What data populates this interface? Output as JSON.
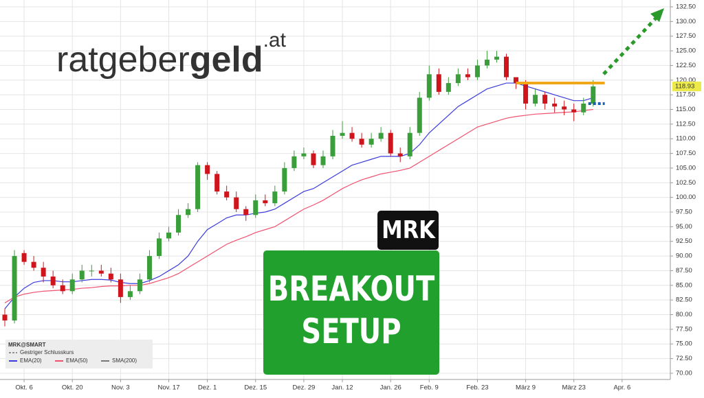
{
  "chart_data": {
    "type": "candlestick",
    "logo": {
      "main": "ratgeber",
      "bold": "geld",
      "suffix": ".at"
    },
    "ticker_badge": "MRK",
    "setup_label": [
      "BREAKOUT",
      "SETUP"
    ],
    "legend_title": "MRK@SMART",
    "legend_note": "Gestriger Schlusskurs",
    "legend_sma": "SMA(200)",
    "up_color": "#3a9e3a",
    "down_color": "#d0141c",
    "x": [
      0,
      1,
      2,
      3,
      4,
      5,
      6,
      7,
      8,
      9,
      10,
      11,
      12,
      13,
      14,
      15,
      16,
      17,
      18,
      19,
      20,
      21,
      22,
      23,
      24,
      25,
      26,
      27,
      28,
      29,
      30,
      31,
      32,
      33,
      34,
      35,
      36,
      37,
      38,
      39,
      40,
      41,
      42,
      43,
      44,
      45,
      46,
      47,
      48,
      49,
      50,
      51,
      52,
      53,
      54,
      55,
      56,
      57,
      58,
      59,
      60,
      61
    ],
    "open": [
      80,
      79,
      90.5,
      89,
      88,
      86.5,
      85,
      84,
      86,
      87.5,
      87.5,
      87,
      86,
      83,
      84,
      86,
      90,
      93,
      94,
      97,
      98,
      105.5,
      104,
      101,
      100,
      98,
      97,
      99.5,
      99,
      101,
      105,
      107,
      107.5,
      105.5,
      107,
      110.5,
      111,
      110,
      109,
      110,
      111,
      107.5,
      107,
      111,
      117,
      121,
      118,
      119.5,
      121,
      120.5,
      122.5,
      123.5,
      124,
      120.5,
      119.5,
      116,
      117.5,
      116,
      115.5,
      115,
      114.5,
      116
    ],
    "high": [
      81,
      91,
      91,
      90,
      89,
      87.5,
      86,
      87,
      88.5,
      88.5,
      88.5,
      88,
      87,
      85,
      87,
      91,
      94,
      95,
      98,
      99,
      106,
      106,
      104.5,
      102,
      101,
      98.5,
      100.5,
      100.5,
      102,
      106,
      108,
      108.5,
      108,
      108,
      111.5,
      113,
      112,
      111,
      111,
      112,
      111.5,
      108.5,
      112,
      118,
      122.5,
      122,
      120.5,
      122,
      122,
      123.5,
      125,
      125,
      124.5,
      120.5,
      120,
      118.5,
      118,
      117,
      116.5,
      116,
      117,
      120
    ],
    "low": [
      78,
      78.5,
      88.5,
      87.5,
      85.5,
      84.5,
      83.5,
      83.5,
      85.5,
      86.5,
      86.5,
      85.5,
      82,
      82.5,
      83.5,
      85.5,
      89.5,
      92.5,
      93.5,
      96.5,
      97.5,
      103,
      100.5,
      99.5,
      97.5,
      96,
      96.5,
      98.5,
      98.5,
      100.5,
      104.5,
      106.5,
      105,
      105,
      106.5,
      110,
      109.5,
      108.5,
      108.5,
      109.5,
      107,
      106,
      106.5,
      110.5,
      116.5,
      117.5,
      117.5,
      119,
      120,
      120,
      122,
      123,
      120,
      118.5,
      115,
      115.5,
      115,
      114.5,
      114,
      113,
      114,
      115.5
    ],
    "close": [
      79,
      90,
      89,
      88,
      86.5,
      85,
      84,
      86,
      87.5,
      87.5,
      87,
      86,
      83,
      84,
      86,
      90,
      93,
      94,
      97,
      98,
      105.5,
      104,
      101,
      100,
      98,
      97,
      99.5,
      99,
      101,
      105,
      107,
      107.5,
      105.5,
      107,
      110.5,
      111,
      110,
      109,
      110,
      111,
      107.5,
      107,
      111,
      117,
      121,
      118,
      119.5,
      121,
      120.5,
      122.5,
      123.5,
      124,
      120.5,
      119.5,
      116,
      117.5,
      116,
      115.5,
      115,
      114.5,
      116,
      118.93
    ],
    "series": [
      {
        "name": "EMA(20)",
        "color": "#3a3adc",
        "values": [
          81,
          83,
          84.5,
          85.5,
          85.8,
          85.8,
          85.6,
          85.6,
          85.8,
          86,
          86,
          85.9,
          85.5,
          85.3,
          85.3,
          85.8,
          86.5,
          87.5,
          88.5,
          90,
          92.5,
          94.5,
          95.5,
          96.5,
          97,
          97,
          97.3,
          97.5,
          98,
          99,
          100,
          101,
          101.5,
          102.5,
          103.5,
          104.5,
          105.5,
          106,
          106.5,
          107,
          107,
          107,
          107.5,
          109,
          111,
          112.5,
          114,
          115.5,
          116.5,
          117.5,
          118.5,
          119,
          119.5,
          119.5,
          119,
          118.5,
          118,
          117.5,
          117,
          116.5,
          116.5,
          117
        ]
      },
      {
        "name": "EMA(50)",
        "color": "#f0506e",
        "values": [
          82,
          83,
          83.5,
          83.8,
          84,
          84.1,
          84.2,
          84.3,
          84.5,
          84.6,
          84.8,
          84.9,
          84.9,
          85,
          85,
          85.3,
          85.8,
          86.3,
          87,
          88,
          89,
          90,
          91,
          92,
          92.7,
          93.3,
          94,
          94.5,
          95,
          96,
          97,
          98,
          98.7,
          99.5,
          100.5,
          101.5,
          102.3,
          103,
          103.5,
          104,
          104.3,
          104.6,
          105,
          106,
          107,
          108,
          109,
          110,
          111,
          112,
          112.5,
          113,
          113.5,
          113.8,
          114,
          114.2,
          114.3,
          114.4,
          114.5,
          114.6,
          114.8,
          115
        ]
      }
    ],
    "resistance": 119.5,
    "support": 116,
    "xlim": [
      -0.5,
      69
    ],
    "xticks": [
      {
        "value": 2,
        "label": "Okt. 6"
      },
      {
        "value": 7,
        "label": "Okt. 20"
      },
      {
        "value": 12,
        "label": "Nov. 3"
      },
      {
        "value": 17,
        "label": "Nov. 17"
      },
      {
        "value": 21,
        "label": "Dez. 1"
      },
      {
        "value": 26,
        "label": "Dez. 15"
      },
      {
        "value": 31,
        "label": "Dez. 29"
      },
      {
        "value": 35,
        "label": "Jan. 12"
      },
      {
        "value": 40,
        "label": "Jan. 26"
      },
      {
        "value": 44,
        "label": "Feb. 9"
      },
      {
        "value": 49,
        "label": "Feb. 23"
      },
      {
        "value": 54,
        "label": "März 9"
      },
      {
        "value": 59,
        "label": "März 23"
      },
      {
        "value": 64,
        "label": "Apr. 6"
      }
    ],
    "ylim": [
      68.94,
      133.67
    ],
    "yticks": [
      {
        "value": 70,
        "label": "70.00"
      },
      {
        "value": 72.5,
        "label": "72.50"
      },
      {
        "value": 75,
        "label": "75.00"
      },
      {
        "value": 77.5,
        "label": "77.50"
      },
      {
        "value": 80,
        "label": "80.00"
      },
      {
        "value": 82.5,
        "label": "82.50"
      },
      {
        "value": 85,
        "label": "85.00"
      },
      {
        "value": 87.5,
        "label": "87.50"
      },
      {
        "value": 90,
        "label": "90.00"
      },
      {
        "value": 92.5,
        "label": "92.50"
      },
      {
        "value": 95,
        "label": "95.00"
      },
      {
        "value": 97.5,
        "label": "97.50"
      },
      {
        "value": 100,
        "label": "100.00"
      },
      {
        "value": 102.5,
        "label": "102.50"
      },
      {
        "value": 105,
        "label": "105.00"
      },
      {
        "value": 107.5,
        "label": "107.50"
      },
      {
        "value": 110,
        "label": "110.00"
      },
      {
        "value": 112.5,
        "label": "112.50"
      },
      {
        "value": 115,
        "label": "115.00"
      },
      {
        "value": 117.5,
        "label": "117.50"
      },
      {
        "value": 120,
        "label": "120.00"
      },
      {
        "value": 122.5,
        "label": "122.50"
      },
      {
        "value": 125,
        "label": "125.00"
      },
      {
        "value": 127.5,
        "label": "127.50"
      },
      {
        "value": 130,
        "label": "130.00"
      },
      {
        "value": 132.5,
        "label": "132.50"
      }
    ],
    "grid": true
  }
}
